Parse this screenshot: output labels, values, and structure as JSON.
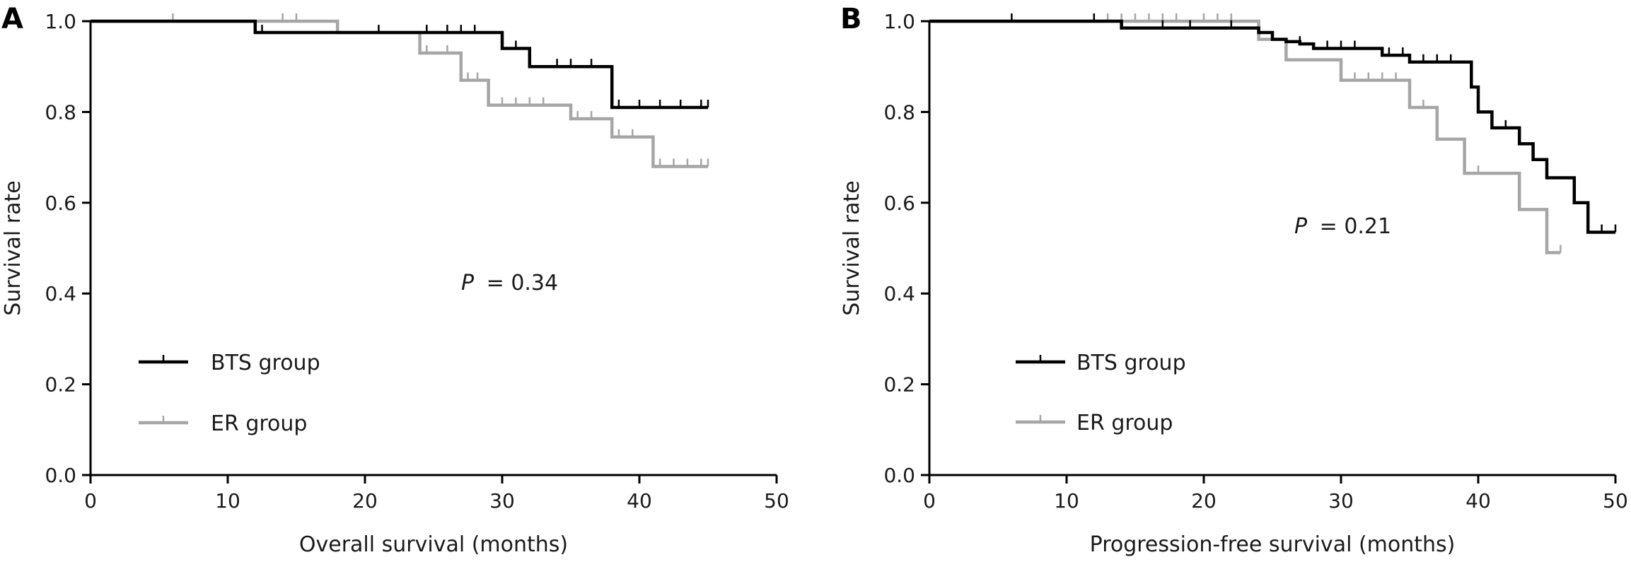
{
  "chart_data": [
    {
      "type": "line",
      "panel_label": "A",
      "xlabel": "Overall survival (months)",
      "ylabel": "Survival rate",
      "xlim": [
        0,
        50
      ],
      "ylim": [
        0.0,
        1.0
      ],
      "xticks": [
        0,
        10,
        20,
        30,
        40,
        50
      ],
      "yticks": [
        "0.0",
        "0.2",
        "0.4",
        "0.6",
        "0.8",
        "1.0"
      ],
      "grid": false,
      "legend_position": "bottom-left",
      "annotation": {
        "p_symbol": "P",
        "p_value": "= 0.34"
      },
      "series": [
        {
          "name": "BTS group",
          "color": "#000000",
          "steps": [
            [
              0,
              1.0
            ],
            [
              6,
              1.0
            ],
            [
              12,
              0.975
            ],
            [
              29,
              0.975
            ],
            [
              30,
              0.94
            ],
            [
              31,
              0.94
            ],
            [
              32,
              0.9
            ],
            [
              37,
              0.9
            ],
            [
              38,
              0.81
            ],
            [
              45,
              0.81
            ]
          ],
          "censored": [
            12.5,
            21,
            24.5,
            26,
            27,
            28,
            31,
            34,
            35,
            36.5,
            38.5,
            40,
            41.5,
            43,
            44.5,
            45
          ]
        },
        {
          "name": "ER group",
          "color": "#a6a6a6",
          "steps": [
            [
              0,
              1.0
            ],
            [
              6,
              1.0
            ],
            [
              15,
              1.0
            ],
            [
              18,
              0.975
            ],
            [
              24,
              0.93
            ],
            [
              27,
              0.87
            ],
            [
              28,
              0.87
            ],
            [
              29,
              0.815
            ],
            [
              34,
              0.815
            ],
            [
              35,
              0.785
            ],
            [
              37,
              0.785
            ],
            [
              38,
              0.745
            ],
            [
              40,
              0.745
            ],
            [
              41,
              0.68
            ],
            [
              45,
              0.68
            ]
          ],
          "censored": [
            6,
            14,
            15,
            24.5,
            26,
            27.5,
            28.2,
            30,
            31,
            32,
            33,
            35.5,
            36.5,
            38.5,
            39.5,
            41.5,
            42.5,
            43.5,
            44.5,
            45
          ]
        }
      ]
    },
    {
      "type": "line",
      "panel_label": "B",
      "xlabel": "Progression-free survival (months)",
      "ylabel": "Survival rate",
      "xlim": [
        0,
        50
      ],
      "ylim": [
        0.0,
        1.0
      ],
      "xticks": [
        0,
        10,
        20,
        30,
        40,
        50
      ],
      "yticks": [
        "0.0",
        "0.2",
        "0.4",
        "0.6",
        "0.8",
        "1.0"
      ],
      "grid": false,
      "legend_position": "bottom-left",
      "annotation": {
        "p_symbol": "P",
        "p_value": "= 0.21"
      },
      "series": [
        {
          "name": "BTS group",
          "color": "#000000",
          "steps": [
            [
              0,
              1.0
            ],
            [
              14,
              1.0
            ],
            [
              14,
              0.985
            ],
            [
              23,
              0.985
            ],
            [
              24,
              0.975
            ],
            [
              25,
              0.96
            ],
            [
              26,
              0.955
            ],
            [
              27,
              0.95
            ],
            [
              28,
              0.94
            ],
            [
              32,
              0.94
            ],
            [
              33,
              0.925
            ],
            [
              35,
              0.925
            ],
            [
              35,
              0.91
            ],
            [
              39,
              0.91
            ],
            [
              39.5,
              0.855
            ],
            [
              40,
              0.8
            ],
            [
              41,
              0.765
            ],
            [
              43,
              0.73
            ],
            [
              44,
              0.695
            ],
            [
              45,
              0.655
            ],
            [
              47,
              0.6
            ],
            [
              48,
              0.535
            ],
            [
              50,
              0.535
            ]
          ],
          "censored": [
            6,
            12,
            17,
            19,
            22,
            25,
            27,
            29,
            30,
            31,
            33.5,
            34.5,
            36,
            37,
            38,
            42,
            49,
            50
          ]
        },
        {
          "name": "ER group",
          "color": "#a6a6a6",
          "steps": [
            [
              0,
              1.0
            ],
            [
              24,
              1.0
            ],
            [
              24,
              0.96
            ],
            [
              26,
              0.915
            ],
            [
              30,
              0.87
            ],
            [
              35,
              0.81
            ],
            [
              37,
              0.74
            ],
            [
              39,
              0.665
            ],
            [
              43,
              0.585
            ],
            [
              45,
              0.49
            ],
            [
              46,
              0.49
            ]
          ],
          "censored": [
            12,
            13,
            14,
            15,
            16,
            17,
            18,
            20,
            21,
            22,
            24,
            25,
            31,
            32,
            33,
            34,
            36,
            40,
            46
          ]
        }
      ]
    }
  ]
}
